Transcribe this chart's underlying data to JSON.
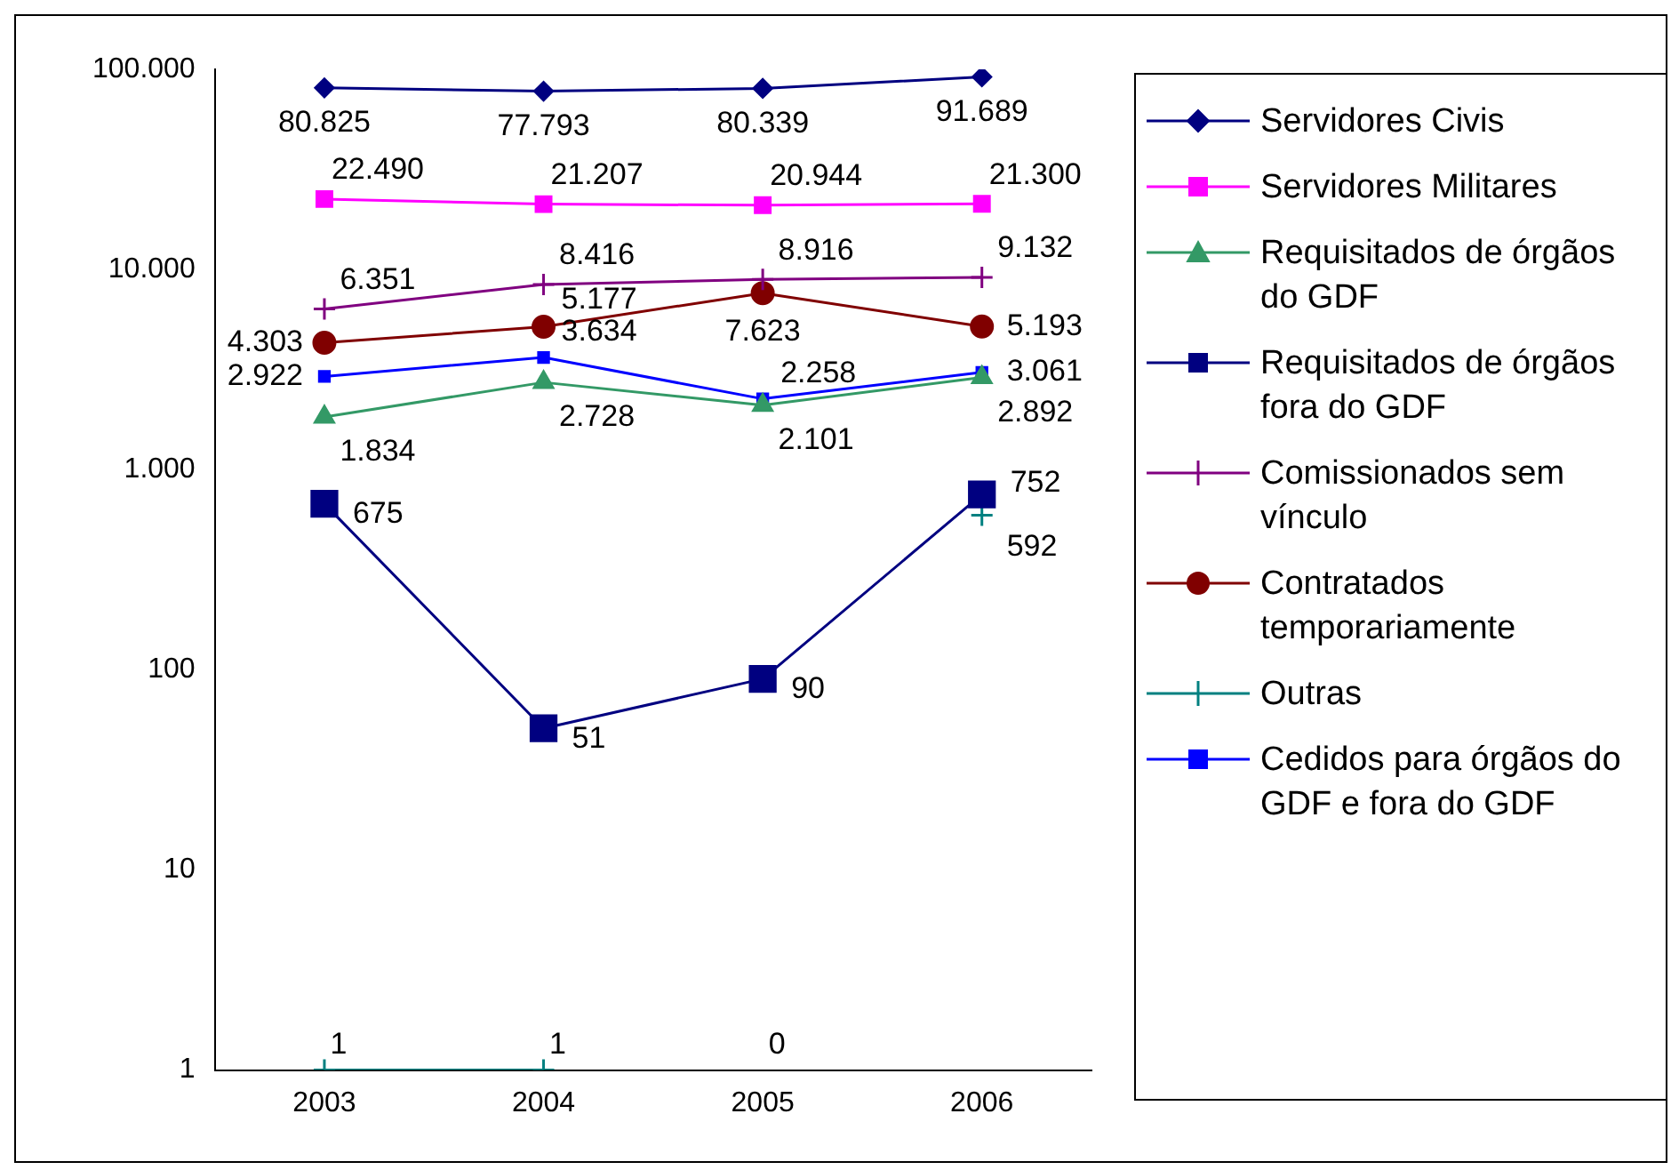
{
  "chart_data": {
    "type": "line",
    "categories": [
      "2003",
      "2004",
      "2005",
      "2006"
    ],
    "log": true,
    "ylim": [
      1,
      100000
    ],
    "yticks": [
      {
        "value": 1,
        "label": "1"
      },
      {
        "value": 10,
        "label": "10"
      },
      {
        "value": 100,
        "label": "100"
      },
      {
        "value": 1000,
        "label": "1.000"
      },
      {
        "value": 10000,
        "label": "10.000"
      },
      {
        "value": 100000,
        "label": "100.000"
      }
    ],
    "grid": false,
    "legend": "right",
    "series": [
      {
        "name": "Servidores Civis",
        "color": "#000080",
        "marker": "diamond",
        "values": [
          80825,
          77793,
          80339,
          91689
        ],
        "value_labels": [
          "80.825",
          "77.793",
          "80.339",
          "91.689"
        ]
      },
      {
        "name": "Servidores Militares",
        "color": "#ff00ff",
        "marker": "square",
        "values": [
          22490,
          21207,
          20944,
          21300
        ],
        "value_labels": [
          "22.490",
          "21.207",
          "20.944",
          "21.300"
        ]
      },
      {
        "name": "Requisitados de órgãos do GDF",
        "color": "#339966",
        "marker": "triangle",
        "values": [
          1834,
          2728,
          2101,
          2892
        ],
        "value_labels": [
          "1.834",
          "2.728",
          "2.101",
          "2.892"
        ]
      },
      {
        "name": "Requisitados de órgãos fora do GDF",
        "color": "#000080",
        "marker": "square",
        "values": [
          675,
          51,
          90,
          752
        ],
        "value_labels": [
          "675",
          "51",
          "90",
          "752"
        ]
      },
      {
        "name": "Comissionados sem vínculo",
        "color": "#800080",
        "marker": "cross",
        "values": [
          6351,
          8416,
          8916,
          9132
        ],
        "value_labels": [
          "6.351",
          "8.416",
          "8.916",
          "9.132"
        ]
      },
      {
        "name": "Contratados temporariamente",
        "color": "#800000",
        "marker": "circle",
        "values": [
          4303,
          5177,
          7623,
          5193
        ],
        "value_labels": [
          "4.303",
          "5.177",
          "7.623",
          "5.193"
        ]
      },
      {
        "name": "Outras",
        "color": "#008080",
        "marker": "cross",
        "values": [
          1,
          1,
          null,
          592
        ],
        "value_labels": [
          "1",
          "1",
          "0",
          "592"
        ]
      },
      {
        "name": "Cedidos para órgãos do GDF e fora do GDF",
        "color": "#0000ff",
        "marker": "square",
        "values": [
          2922,
          3634,
          2258,
          3061
        ],
        "value_labels": [
          "2.922",
          "3.634",
          "2.258",
          "3.061"
        ]
      }
    ]
  }
}
